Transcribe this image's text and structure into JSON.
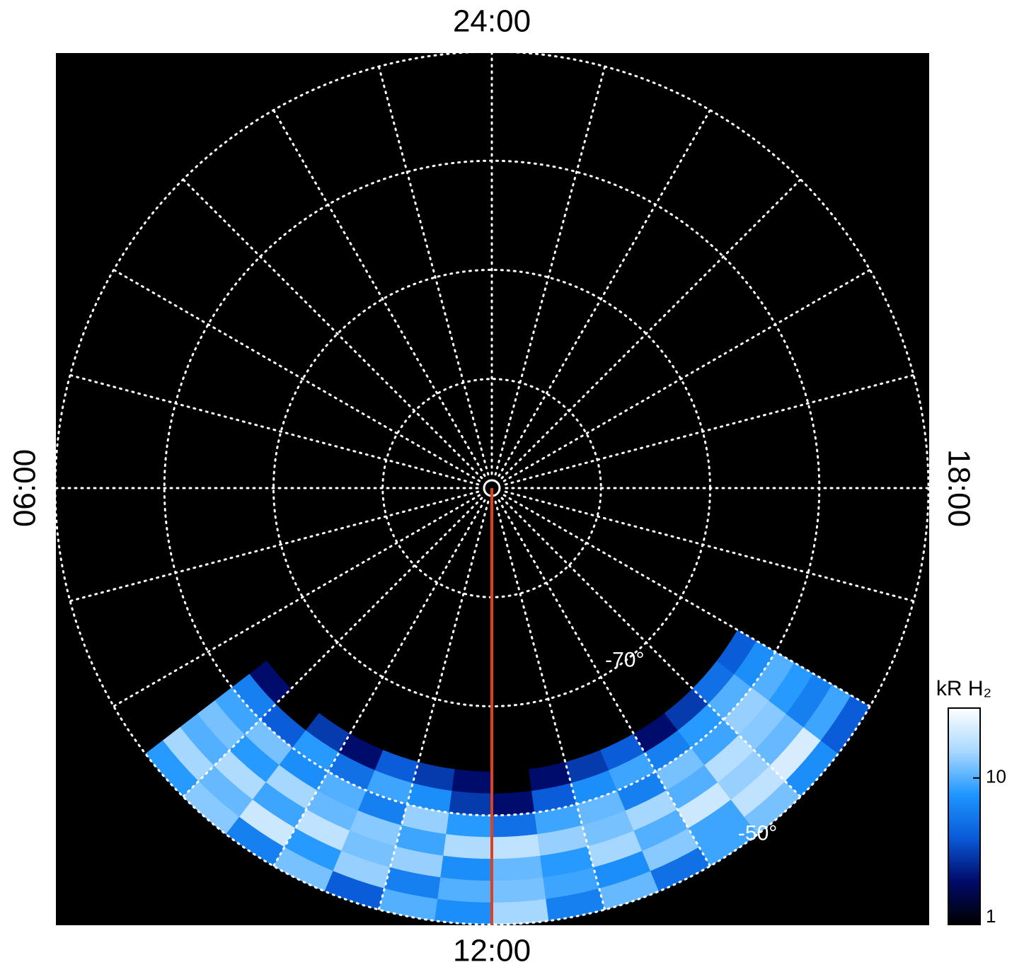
{
  "chart_data": {
    "type": "polar-image",
    "rlim": [
      -90,
      -50
    ],
    "lat_rings": [
      -80,
      -70,
      -60,
      -50
    ],
    "ring_labels": [
      {
        "value": -70,
        "label": "-70°"
      },
      {
        "value": -50,
        "label": "-50°"
      }
    ],
    "meridians": [
      0,
      1,
      2,
      3,
      4,
      5,
      6,
      7,
      8,
      9,
      10,
      11,
      12,
      13,
      14,
      15,
      16,
      17,
      18,
      19,
      20,
      21,
      22,
      23
    ],
    "lt_labels": [
      {
        "value": 24,
        "label": "24:00"
      },
      {
        "value": 6,
        "label": "06:00"
      },
      {
        "value": 18,
        "label": "18:00"
      },
      {
        "value": 12,
        "label": "12:00"
      }
    ],
    "track": {
      "lt": 12,
      "color": "#e0401a"
    },
    "grid_color": "#ffffff",
    "colormap": [
      "#000000",
      "#000a6a",
      "#0a5ad8",
      "#1e96ff",
      "#a8d8ff",
      "#ffffff"
    ],
    "colorbar": {
      "title": "kR H₂",
      "log": true,
      "clim": [
        1,
        30
      ],
      "ticks": [
        1,
        10
      ]
    },
    "emission": {
      "lat_edges": [
        -64,
        -62,
        -60,
        -58,
        -56,
        -54,
        -52,
        -50
      ],
      "lt_edges": [
        8.5,
        9,
        9.5,
        10,
        10.5,
        11,
        11.5,
        12,
        12.5,
        13,
        13.5,
        14,
        14.5,
        15,
        15.5,
        16
      ],
      "values": [
        [
          2,
          1,
          3,
          2,
          4,
          3,
          2,
          1,
          2,
          3,
          4,
          2,
          3,
          5,
          4
        ],
        [
          6,
          4,
          8,
          5,
          9,
          7,
          3,
          2,
          4,
          7,
          9,
          6,
          8,
          10,
          7
        ],
        [
          9,
          12,
          7,
          10,
          6,
          14,
          8,
          5,
          9,
          11,
          6,
          12,
          9,
          14,
          10
        ],
        [
          12,
          8,
          15,
          11,
          13,
          9,
          16,
          18,
          14,
          12,
          15,
          10,
          17,
          13,
          8
        ],
        [
          10,
          16,
          9,
          18,
          12,
          14,
          7,
          11,
          8,
          15,
          10,
          20,
          14,
          11,
          6
        ],
        [
          15,
          11,
          20,
          8,
          14,
          6,
          10,
          12,
          9,
          7,
          13,
          9,
          18,
          22,
          9
        ],
        [
          8,
          13,
          6,
          12,
          4,
          10,
          7,
          15,
          6,
          11,
          5,
          9,
          12,
          7,
          4
        ]
      ]
    }
  }
}
